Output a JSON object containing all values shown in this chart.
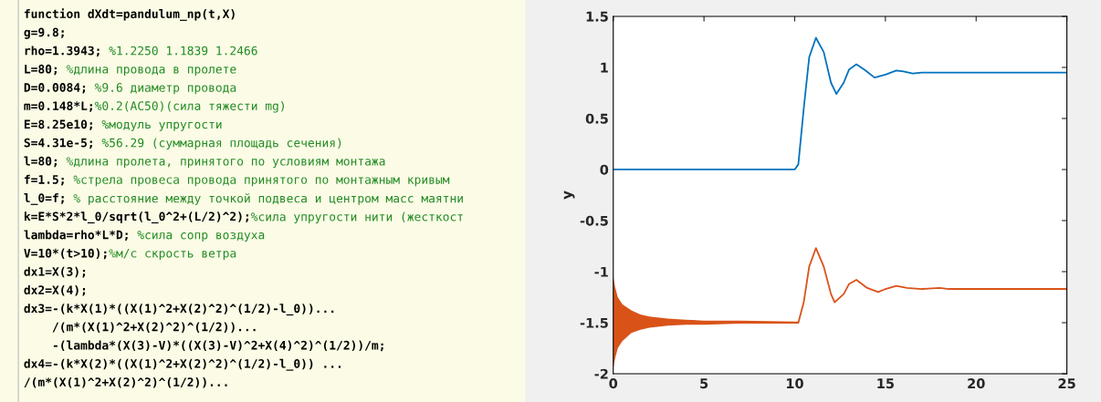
{
  "chart_data": [
    {
      "type": "other",
      "annotations": [
        "function dXdt=pandulum_np(t,X)",
        "g=9.8;",
        "rho=1.3943; %1.2250 1.1839 1.2466",
        "L=80; %длина провода в пролете",
        "D=0.0084; %9.6 диаметр провода",
        "m=0.148*L;%0.2(AC50)(сила тяжести mg)",
        "E=8.25e10; %модуль упругости",
        "S=4.31e-5; %56.29 (суммарная площадь сечения)",
        "l=80; %длина пролета, принятого по условиям монтажа",
        "f=1.5; %стрела провеса провода принятого по монтажным кривым",
        "l_0=f; % расстояние между точкой подвеса и центром масс маятни",
        "k=E*S*2*l_0/sqrt(l_0^2+(L/2)^2);%сила упругости нити (жесткост",
        "lambda=rho*L*D; %сила сопр воздуха",
        "V=10*(t>10);%м/с скрость ветра",
        "dx1=X(3);",
        "dx2=X(4);",
        "dx3=-(k*X(1)*((X(1)^2+X(2)^2)^(1/2)-l_0))...",
        "    /(m*(X(1)^2+X(2)^2)^(1/2))...",
        "    -(lambda*(X(3)-V)*((X(3)-V)^2+X(4)^2)^(1/2))/m;",
        "dx4=-(k*X(2)*((X(1)^2+X(2)^2)^(1/2)-l_0)) ...",
        "/(m*(X(1)^2+X(2)^2)^(1/2))..."
      ]
    },
    {
      "type": "line",
      "ylabel": "y",
      "xlim": [
        0,
        25
      ],
      "ylim": [
        -2,
        1.5
      ],
      "xticks": [
        0,
        5,
        10,
        15,
        20,
        25
      ],
      "yticks": [
        -2,
        -1.5,
        -1,
        -0.5,
        0,
        0.5,
        1,
        1.5
      ],
      "grid": false,
      "series": [
        {
          "color": "#0072bd",
          "x": [
            0,
            10,
            10.2,
            10.5,
            10.8,
            11.17,
            11.6,
            12.0,
            12.3,
            12.7,
            13.0,
            13.4,
            13.9,
            14.4,
            15.0,
            15.6,
            16.0,
            16.5,
            17.0,
            25
          ],
          "values": [
            0,
            0,
            0.05,
            0.6,
            1.1,
            1.29,
            1.15,
            0.85,
            0.74,
            0.85,
            0.98,
            1.03,
            0.97,
            0.9,
            0.93,
            0.97,
            0.96,
            0.94,
            0.95,
            0.95
          ]
        },
        {
          "color": "#d95319",
          "x": [
            0,
            0.1,
            0.25,
            0.5,
            1,
            1.5,
            2,
            3,
            4,
            5,
            7,
            10,
            10.2,
            10.5,
            10.8,
            11.17,
            11.6,
            12.0,
            12.2,
            12.7,
            13.0,
            13.4,
            14.0,
            14.6,
            15.0,
            15.6,
            16.2,
            17.0,
            18.0,
            18.5,
            25
          ],
          "values": [
            -1.5,
            -1.5,
            -1.5,
            -1.5,
            -1.5,
            -1.5,
            -1.5,
            -1.5,
            -1.5,
            -1.5,
            -1.5,
            -1.5,
            -1.5,
            -1.3,
            -0.95,
            -0.77,
            -0.95,
            -1.22,
            -1.3,
            -1.22,
            -1.12,
            -1.08,
            -1.16,
            -1.2,
            -1.17,
            -1.14,
            -1.16,
            -1.17,
            -1.16,
            -1.17,
            -1.17
          ],
          "upper": [
            -1.05,
            -1.15,
            -1.25,
            -1.32,
            -1.38,
            -1.42,
            -1.44,
            -1.46,
            -1.47,
            -1.48,
            -1.48,
            -1.49,
            -1.49,
            null,
            null,
            null,
            null,
            null,
            null,
            null,
            null,
            null,
            null,
            null,
            null,
            null,
            null,
            null,
            null,
            null,
            null
          ],
          "lower": [
            -1.95,
            -1.85,
            -1.75,
            -1.68,
            -1.6,
            -1.57,
            -1.55,
            -1.53,
            -1.52,
            -1.52,
            -1.51,
            -1.51,
            -1.51,
            null,
            null,
            null,
            null,
            null,
            null,
            null,
            null,
            null,
            null,
            null,
            null,
            null,
            null,
            null,
            null,
            null,
            null
          ]
        }
      ]
    }
  ]
}
